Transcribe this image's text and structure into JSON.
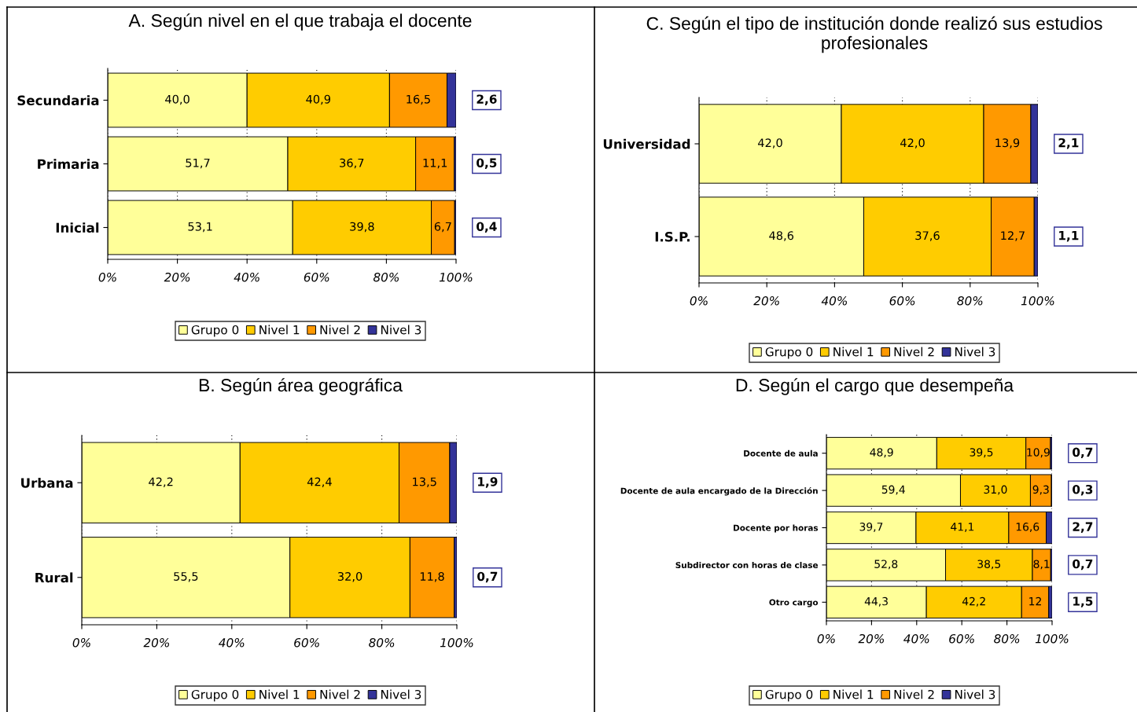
{
  "chart_data": [
    {
      "type": "bar",
      "orientation": "horizontal",
      "stacked": true,
      "title": "A. Según nivel en el que trabaja el docente",
      "categories": [
        "Secundaria",
        "Primaria",
        "Inicial"
      ],
      "xlim": [
        0,
        100
      ],
      "xticks": [
        {
          "value": 0,
          "label": "0%"
        },
        {
          "value": 20,
          "label": "20%"
        },
        {
          "value": 40,
          "label": "40%"
        },
        {
          "value": 60,
          "label": "60%"
        },
        {
          "value": 80,
          "label": "80%"
        },
        {
          "value": 100,
          "label": "100%"
        }
      ],
      "grid": "x",
      "legend": "bottom",
      "series": [
        {
          "name": "Grupo 0",
          "color": "#ffff99",
          "values": [
            40.0,
            51.7,
            53.1
          ],
          "value_labels": [
            "40,0",
            "51,7",
            "53,1"
          ]
        },
        {
          "name": "Nivel 1",
          "color": "#ffcc00",
          "values": [
            40.9,
            36.7,
            39.8
          ],
          "value_labels": [
            "40,9",
            "36,7",
            "39,8"
          ]
        },
        {
          "name": "Nivel 2",
          "color": "#ff9900",
          "values": [
            16.5,
            11.1,
            6.7
          ],
          "value_labels": [
            "16,5",
            "11,1",
            "6,7"
          ]
        },
        {
          "name": "Nivel 3",
          "color": "#333399",
          "values": [
            2.6,
            0.5,
            0.4
          ],
          "value_labels": [
            "2,6",
            "0,5",
            "0,4"
          ]
        }
      ]
    },
    {
      "type": "bar",
      "orientation": "horizontal",
      "stacked": true,
      "title": "C. Según el tipo de institución donde realizó sus estudios profesionales",
      "categories": [
        "Universidad",
        "I.S.P."
      ],
      "xlim": [
        0,
        100
      ],
      "xticks": [
        {
          "value": 0,
          "label": "0%"
        },
        {
          "value": 20,
          "label": "20%"
        },
        {
          "value": 40,
          "label": "40%"
        },
        {
          "value": 60,
          "label": "60%"
        },
        {
          "value": 80,
          "label": "80%"
        },
        {
          "value": 100,
          "label": "100%"
        }
      ],
      "grid": "x",
      "legend": "bottom",
      "series": [
        {
          "name": "Grupo 0",
          "color": "#ffff99",
          "values": [
            42.0,
            48.6
          ],
          "value_labels": [
            "42,0",
            "48,6"
          ]
        },
        {
          "name": "Nivel 1",
          "color": "#ffcc00",
          "values": [
            42.0,
            37.6
          ],
          "value_labels": [
            "42,0",
            "37,6"
          ]
        },
        {
          "name": "Nivel 2",
          "color": "#ff9900",
          "values": [
            13.9,
            12.7
          ],
          "value_labels": [
            "13,9",
            "12,7"
          ]
        },
        {
          "name": "Nivel 3",
          "color": "#333399",
          "values": [
            2.1,
            1.1
          ],
          "value_labels": [
            "2,1",
            "1,1"
          ]
        }
      ]
    },
    {
      "type": "bar",
      "orientation": "horizontal",
      "stacked": true,
      "title": "B. Según área geográfica",
      "categories": [
        "Urbana",
        "Rural"
      ],
      "xlim": [
        0,
        100
      ],
      "xticks": [
        {
          "value": 0,
          "label": "0%"
        },
        {
          "value": 20,
          "label": "20%"
        },
        {
          "value": 40,
          "label": "40%"
        },
        {
          "value": 60,
          "label": "60%"
        },
        {
          "value": 80,
          "label": "80%"
        },
        {
          "value": 100,
          "label": "100%"
        }
      ],
      "grid": "x",
      "legend": "bottom",
      "series": [
        {
          "name": "Grupo 0",
          "color": "#ffff99",
          "values": [
            42.2,
            55.5
          ],
          "value_labels": [
            "42,2",
            "55,5"
          ]
        },
        {
          "name": "Nivel 1",
          "color": "#ffcc00",
          "values": [
            42.4,
            32.0
          ],
          "value_labels": [
            "42,4",
            "32,0"
          ]
        },
        {
          "name": "Nivel 2",
          "color": "#ff9900",
          "values": [
            13.5,
            11.8
          ],
          "value_labels": [
            "13,5",
            "11,8"
          ]
        },
        {
          "name": "Nivel 3",
          "color": "#333399",
          "values": [
            1.9,
            0.7
          ],
          "value_labels": [
            "1,9",
            "0,7"
          ]
        }
      ]
    },
    {
      "type": "bar",
      "orientation": "horizontal",
      "stacked": true,
      "title": "D. Según el cargo que desempeña",
      "categories": [
        "Docente de aula",
        "Docente de aula encargado de la Dirección",
        "Docente por horas",
        "Subdirector con horas de clase",
        "Otro cargo"
      ],
      "xlim": [
        0,
        100
      ],
      "xticks": [
        {
          "value": 0,
          "label": "0%"
        },
        {
          "value": 20,
          "label": "20%"
        },
        {
          "value": 40,
          "label": "40%"
        },
        {
          "value": 60,
          "label": "60%"
        },
        {
          "value": 80,
          "label": "80%"
        },
        {
          "value": 100,
          "label": "100%"
        }
      ],
      "grid": "x",
      "legend": "bottom",
      "series": [
        {
          "name": "Grupo 0",
          "color": "#ffff99",
          "values": [
            48.9,
            59.4,
            39.7,
            52.8,
            44.3
          ],
          "value_labels": [
            "48,9",
            "59,4",
            "39,7",
            "52,8",
            "44,3"
          ]
        },
        {
          "name": "Nivel 1",
          "color": "#ffcc00",
          "values": [
            39.5,
            31.0,
            41.1,
            38.5,
            42.2
          ],
          "value_labels": [
            "39,5",
            "31,0",
            "41,1",
            "38,5",
            "42,2"
          ]
        },
        {
          "name": "Nivel 2",
          "color": "#ff9900",
          "values": [
            10.9,
            9.3,
            16.6,
            8.1,
            12
          ],
          "value_labels": [
            "10,9",
            "9,3",
            "16,6",
            "8,1",
            "12"
          ]
        },
        {
          "name": "Nivel 3",
          "color": "#333399",
          "values": [
            0.7,
            0.3,
            2.7,
            0.7,
            1.5
          ],
          "value_labels": [
            "0,7",
            "0,3",
            "2,7",
            "0,7",
            "1,5"
          ]
        }
      ]
    }
  ]
}
